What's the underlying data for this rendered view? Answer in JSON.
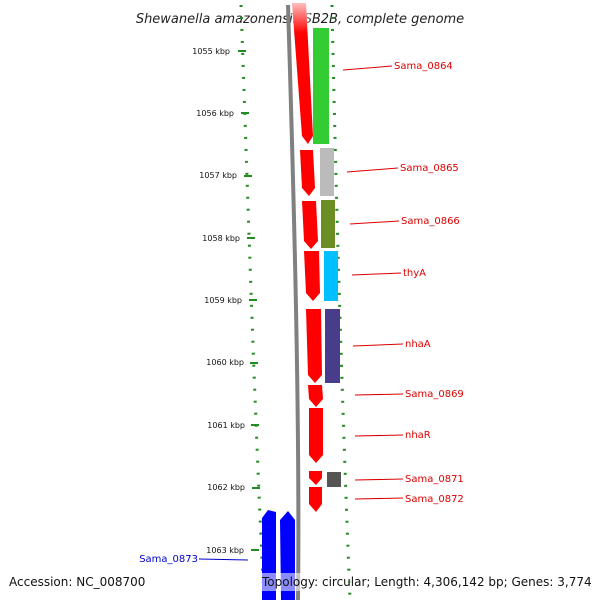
{
  "title": "Shewanella amazonensis SB2B, complete genome",
  "footer": {
    "accession": "Accession: NC_008700",
    "topology": "Topology: circular; Length: 4,306,142 bp; Genes: 3,774"
  },
  "ticks": [
    "1055 kbp",
    "1056 kbp",
    "1057 kbp",
    "1058 kbp",
    "1059 kbp",
    "1060 kbp",
    "1061 kbp",
    "1062 kbp",
    "1063 kbp"
  ],
  "genes": [
    {
      "label": "Sama_0864",
      "color": "#dd0000"
    },
    {
      "label": "Sama_0865",
      "color": "#dd0000"
    },
    {
      "label": "Sama_0866",
      "color": "#dd0000"
    },
    {
      "label": "thyA",
      "color": "#dd0000"
    },
    {
      "label": "nhaA",
      "color": "#dd0000"
    },
    {
      "label": "Sama_0869",
      "color": "#dd0000"
    },
    {
      "label": "nhaR",
      "color": "#dd0000"
    },
    {
      "label": "Sama_0871",
      "color": "#dd0000"
    },
    {
      "label": "Sama_0872",
      "color": "#dd0000"
    },
    {
      "label": "Sama_0873",
      "color": "#0000cc"
    }
  ],
  "colors": {
    "forward_strand": "#ff0000",
    "reverse_strand": "#0000ff",
    "backbone": "#808080",
    "ticks": "#228b22",
    "cog_green": "#33cc33",
    "cog_light_gray": "#bbbbbb",
    "cog_olive": "#6b8e23",
    "cog_sky_blue": "#00bfff",
    "cog_dark_slate_blue": "#483d8b",
    "cog_dark_gray": "#555555"
  }
}
